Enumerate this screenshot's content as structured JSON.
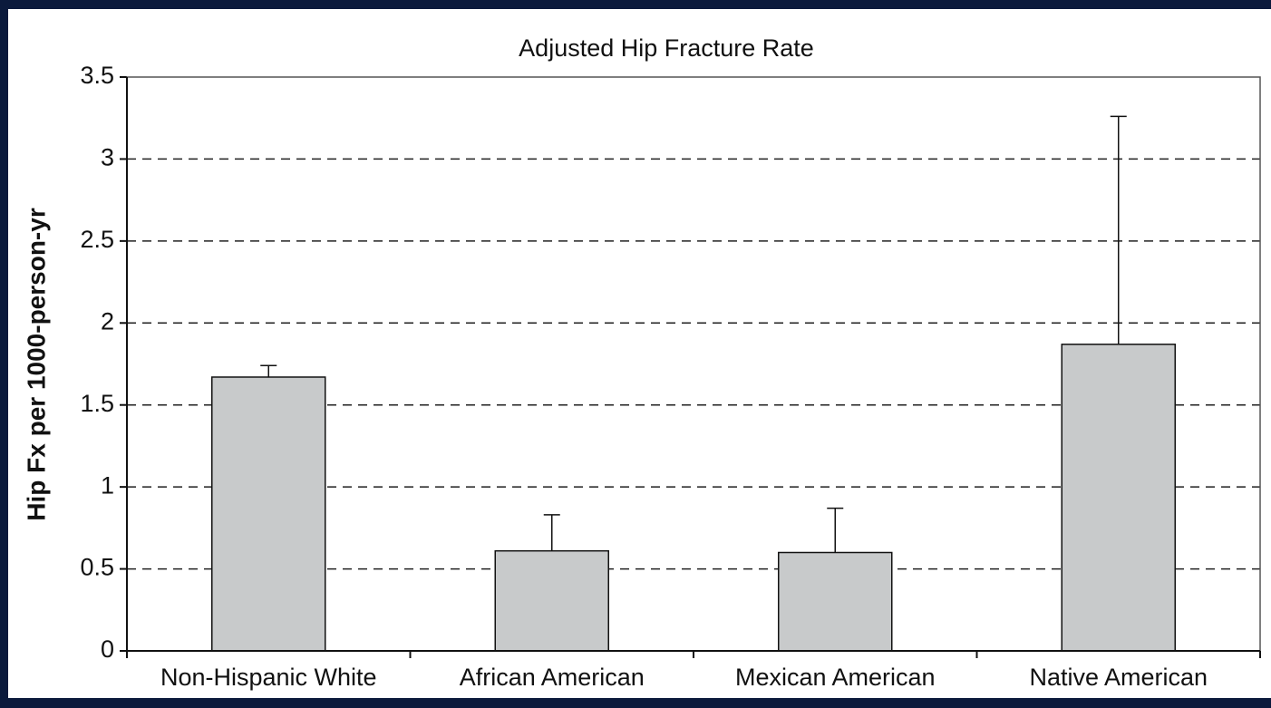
{
  "chart_data": {
    "type": "bar",
    "title": "Adjusted Hip Fracture Rate",
    "y_label": "Hip Fx per 1000-person-yr",
    "categories": [
      "Non-Hispanic White",
      "African American",
      "Mexican American",
      "Native American"
    ],
    "values": [
      1.67,
      0.61,
      0.6,
      1.87
    ],
    "errors": [
      0.07,
      0.22,
      0.27,
      1.39
    ],
    "color": "#c8cacb",
    "ylim": [
      0,
      3.5
    ],
    "yticks": [
      0,
      0.5,
      1,
      1.5,
      2,
      2.5,
      3,
      3.5
    ],
    "grid": true
  }
}
